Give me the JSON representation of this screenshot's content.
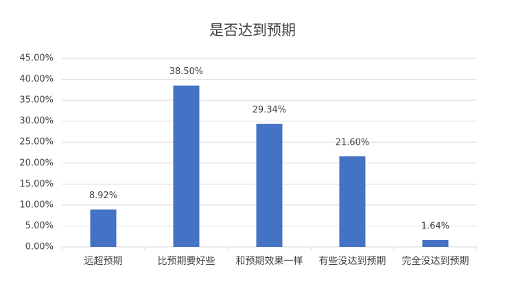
{
  "chart_data": {
    "type": "bar",
    "title": "是否达到预期",
    "categories": [
      "远超预期",
      "比预期要好些",
      "和预期效果一样",
      "有些没达到预期",
      "完全没达到预期"
    ],
    "values": [
      8.92,
      38.5,
      29.34,
      21.6,
      1.64
    ],
    "value_labels": [
      "8.92%",
      "38.50%",
      "29.34%",
      "21.60%",
      "1.64%"
    ],
    "color": "#4472c4",
    "ylim": [
      0,
      45
    ],
    "yticks": [
      {
        "value": 0,
        "label": "0.00%"
      },
      {
        "value": 5,
        "label": "5.00%"
      },
      {
        "value": 10,
        "label": "10.00%"
      },
      {
        "value": 15,
        "label": "15.00%"
      },
      {
        "value": 20,
        "label": "20.00%"
      },
      {
        "value": 25,
        "label": "25.00%"
      },
      {
        "value": 30,
        "label": "30.00%"
      },
      {
        "value": 35,
        "label": "35.00%"
      },
      {
        "value": 40,
        "label": "40.00%"
      },
      {
        "value": 45,
        "label": "45.00%"
      }
    ],
    "grid": true
  }
}
